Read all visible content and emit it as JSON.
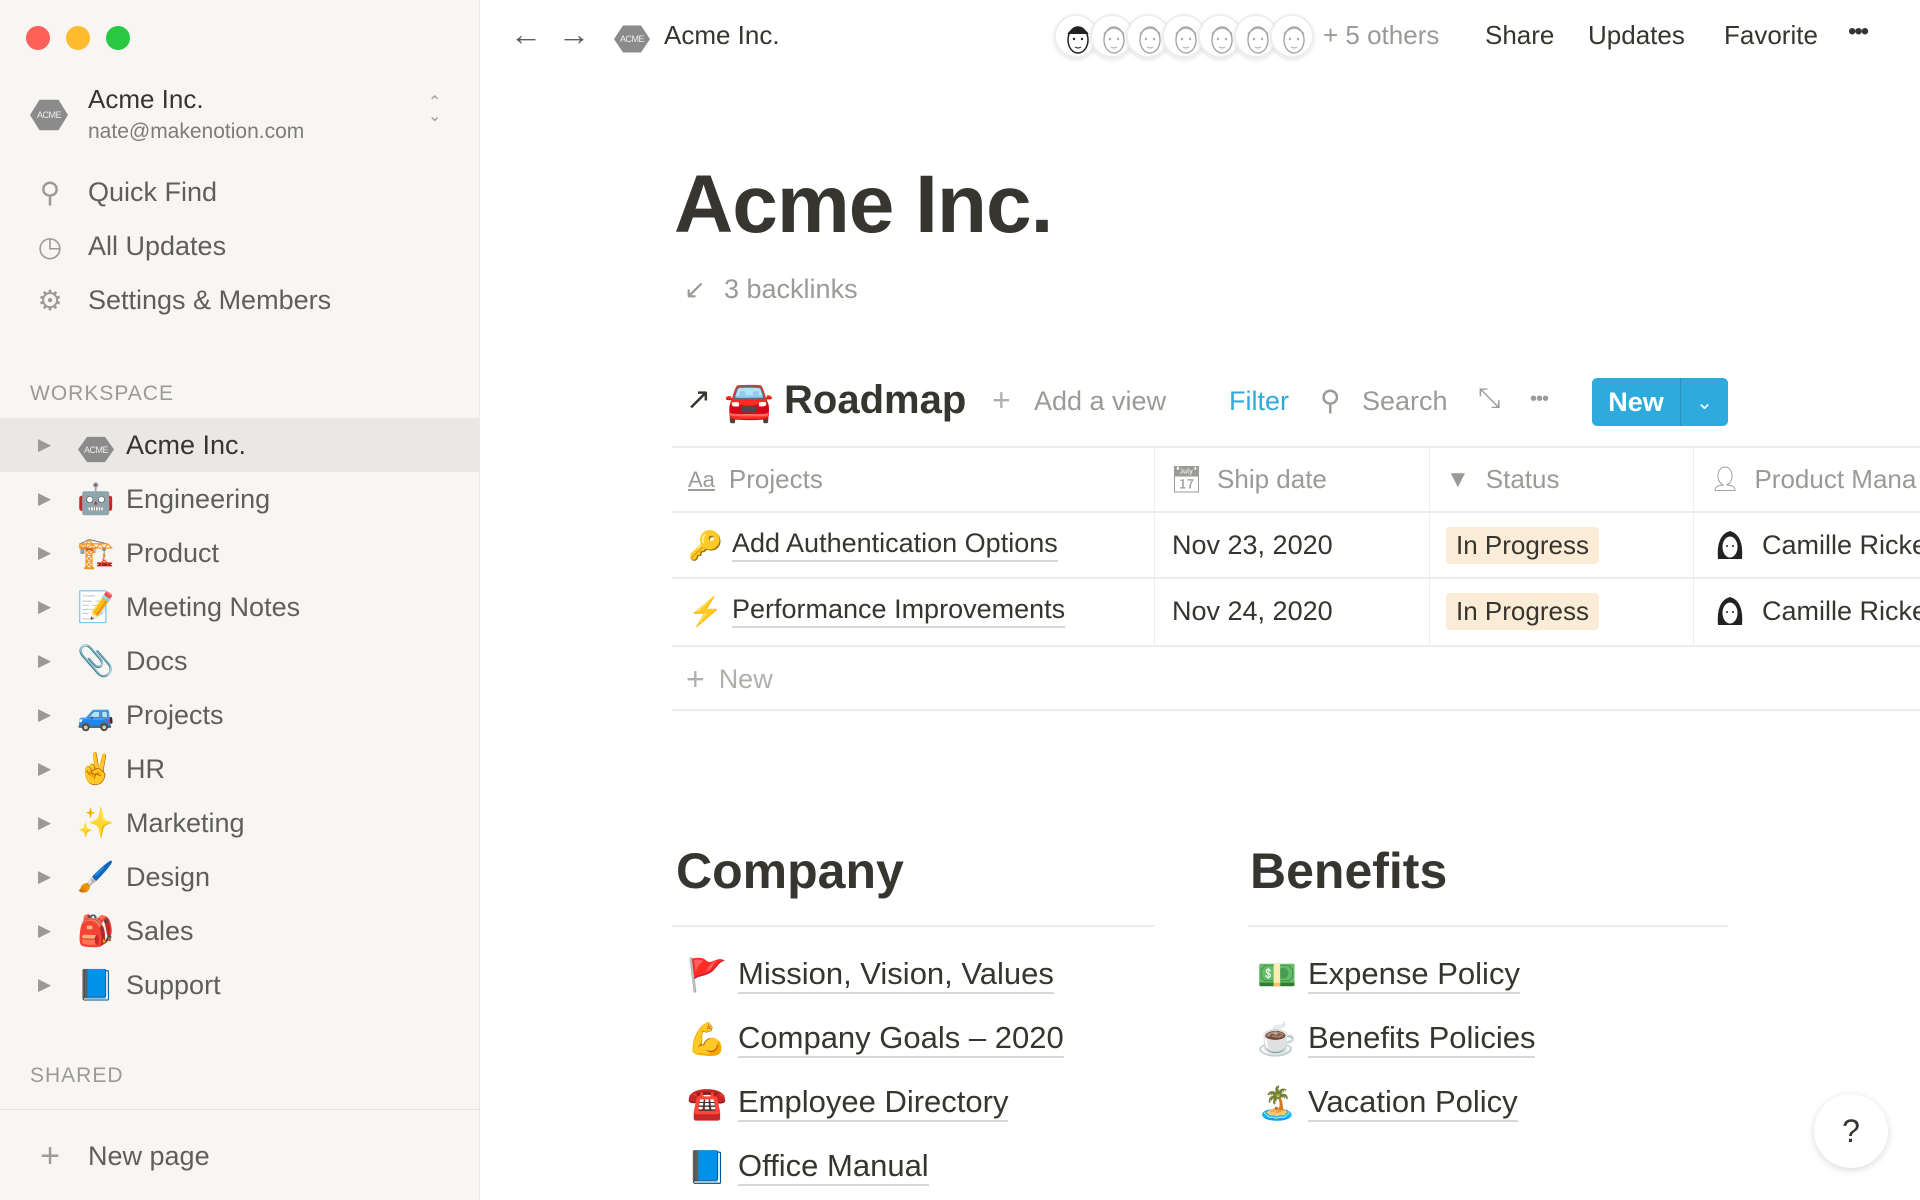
{
  "window": {
    "controls": [
      "close",
      "minimize",
      "maximize"
    ]
  },
  "sidebar": {
    "workspace_name": "Acme Inc.",
    "workspace_email": "nate@makenotion.com",
    "workspace_logo": "ACME",
    "links": [
      {
        "label": "Quick Find",
        "icon": "search-icon"
      },
      {
        "label": "All Updates",
        "icon": "clock-icon"
      },
      {
        "label": "Settings & Members",
        "icon": "gear-icon"
      }
    ],
    "workspace_section": "WORKSPACE",
    "items": [
      {
        "label": "Acme Inc.",
        "emoji": "ACME",
        "selected": true
      },
      {
        "label": "Engineering",
        "emoji": "🤖"
      },
      {
        "label": "Product",
        "emoji": "🏗️"
      },
      {
        "label": "Meeting Notes",
        "emoji": "📝"
      },
      {
        "label": "Docs",
        "emoji": "📎"
      },
      {
        "label": "Projects",
        "emoji": "🚙"
      },
      {
        "label": "HR",
        "emoji": "✌️"
      },
      {
        "label": "Marketing",
        "emoji": "✨"
      },
      {
        "label": "Design",
        "emoji": "🖌️"
      },
      {
        "label": "Sales",
        "emoji": "🎒"
      },
      {
        "label": "Support",
        "emoji": "📘"
      }
    ],
    "shared_section": "SHARED",
    "new_page": "New page"
  },
  "topbar": {
    "breadcrumb": "Acme Inc.",
    "others": "+ 5 others",
    "share": "Share",
    "updates": "Updates",
    "favorite": "Favorite",
    "more": "•••"
  },
  "page": {
    "title": "Acme Inc.",
    "backlinks": "3 backlinks"
  },
  "roadmap": {
    "emoji": "🚘",
    "title": "Roadmap",
    "add_view": "Add a view",
    "filter": "Filter",
    "search": "Search",
    "more": "•••",
    "new": "New",
    "accent": "#2eaadc",
    "columns": [
      {
        "label": "Projects",
        "icon": "text-icon"
      },
      {
        "label": "Ship date",
        "icon": "calendar-icon"
      },
      {
        "label": "Status",
        "icon": "select-icon"
      },
      {
        "label": "Product Mana",
        "icon": "person-icon"
      }
    ],
    "rows": [
      {
        "emoji": "🔑",
        "project": "Add Authentication Options",
        "ship_date": "Nov 23, 2020",
        "status": "In Progress",
        "manager": "Camille Ricke"
      },
      {
        "emoji": "⚡",
        "project": "Performance Improvements",
        "ship_date": "Nov 24, 2020",
        "status": "In Progress",
        "manager": "Camille Ricke"
      }
    ],
    "new_row": "New"
  },
  "company": {
    "title": "Company",
    "links": [
      {
        "emoji": "🚩",
        "label": "Mission, Vision, Values"
      },
      {
        "emoji": "💪",
        "label": "Company Goals – 2020"
      },
      {
        "emoji": "☎️",
        "label": "Employee Directory"
      },
      {
        "emoji": "📘",
        "label": "Office Manual"
      }
    ]
  },
  "benefits": {
    "title": "Benefits",
    "links": [
      {
        "emoji": "💵",
        "label": "Expense Policy"
      },
      {
        "emoji": "☕",
        "label": "Benefits Policies"
      },
      {
        "emoji": "🏝️",
        "label": "Vacation Policy"
      }
    ]
  },
  "help": "?"
}
